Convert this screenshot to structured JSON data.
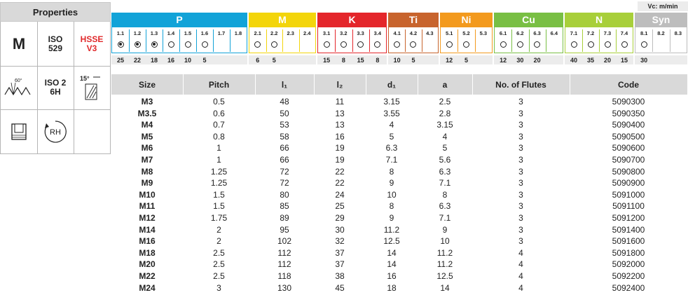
{
  "properties": {
    "title": "Properties",
    "tap_type": "M",
    "standard": [
      "ISO",
      "529"
    ],
    "material": [
      "HSSE",
      "V3"
    ],
    "tolerance": [
      "ISO 2",
      "6H"
    ],
    "thread_angle": "60°",
    "helix_angle": "15°",
    "direction": "RH"
  },
  "vc_label": "Vc: m/min",
  "groups": [
    {
      "name": "P",
      "color": "#12a3d8",
      "subs": [
        {
          "code": "1.1",
          "sym": "filled",
          "vc": "25"
        },
        {
          "code": "1.2",
          "sym": "filled",
          "vc": "22"
        },
        {
          "code": "1.3",
          "sym": "filled",
          "vc": "18"
        },
        {
          "code": "1.4",
          "sym": "open",
          "vc": "16"
        },
        {
          "code": "1.5",
          "sym": "open",
          "vc": "10"
        },
        {
          "code": "1.6",
          "sym": "open",
          "vc": "5"
        },
        {
          "code": "1.7",
          "sym": "",
          "vc": ""
        },
        {
          "code": "1.8",
          "sym": "",
          "vc": ""
        }
      ]
    },
    {
      "name": "M",
      "color": "#f3d50b",
      "subs": [
        {
          "code": "2.1",
          "sym": "open",
          "vc": "6"
        },
        {
          "code": "2.2",
          "sym": "open",
          "vc": "5"
        },
        {
          "code": "2.3",
          "sym": "",
          "vc": ""
        },
        {
          "code": "2.4",
          "sym": "",
          "vc": ""
        }
      ]
    },
    {
      "name": "K",
      "color": "#e4262b",
      "subs": [
        {
          "code": "3.1",
          "sym": "open",
          "vc": "15"
        },
        {
          "code": "3.2",
          "sym": "open",
          "vc": "8"
        },
        {
          "code": "3.3",
          "sym": "open",
          "vc": "15"
        },
        {
          "code": "3.4",
          "sym": "open",
          "vc": "8"
        }
      ]
    },
    {
      "name": "Ti",
      "color": "#c8642d",
      "subs": [
        {
          "code": "4.1",
          "sym": "open",
          "vc": "10"
        },
        {
          "code": "4.2",
          "sym": "open",
          "vc": "5"
        },
        {
          "code": "4.3",
          "sym": "",
          "vc": ""
        }
      ]
    },
    {
      "name": "Ni",
      "color": "#f39a1e",
      "subs": [
        {
          "code": "5.1",
          "sym": "open",
          "vc": "12"
        },
        {
          "code": "5.2",
          "sym": "open",
          "vc": "5"
        },
        {
          "code": "5.3",
          "sym": "",
          "vc": ""
        }
      ]
    },
    {
      "name": "Cu",
      "color": "#79bf44",
      "subs": [
        {
          "code": "6.1",
          "sym": "open",
          "vc": "12"
        },
        {
          "code": "6.2",
          "sym": "open",
          "vc": "30"
        },
        {
          "code": "6.3",
          "sym": "open",
          "vc": "20"
        },
        {
          "code": "6.4",
          "sym": "",
          "vc": ""
        }
      ]
    },
    {
      "name": "N",
      "color": "#a8cf3a",
      "subs": [
        {
          "code": "7.1",
          "sym": "open",
          "vc": "40"
        },
        {
          "code": "7.2",
          "sym": "open",
          "vc": "35"
        },
        {
          "code": "7.3",
          "sym": "open",
          "vc": "20"
        },
        {
          "code": "7.4",
          "sym": "open",
          "vc": "15"
        }
      ]
    },
    {
      "name": "Syn",
      "color": "#bdbdbd",
      "subs": [
        {
          "code": "8.1",
          "sym": "open",
          "vc": "30"
        },
        {
          "code": "8.2",
          "sym": "",
          "vc": ""
        },
        {
          "code": "8.3",
          "sym": "",
          "vc": ""
        }
      ]
    }
  ],
  "table": {
    "headers": [
      "Size",
      "Pitch",
      "l₁",
      "l₂",
      "d₁",
      "a",
      "No. of Flutes",
      "Code"
    ],
    "rows": [
      [
        "M3",
        "0.5",
        "48",
        "11",
        "3.15",
        "2.5",
        "3",
        "5090300"
      ],
      [
        "M3.5",
        "0.6",
        "50",
        "13",
        "3.55",
        "2.8",
        "3",
        "5090350"
      ],
      [
        "M4",
        "0.7",
        "53",
        "13",
        "4",
        "3.15",
        "3",
        "5090400"
      ],
      [
        "M5",
        "0.8",
        "58",
        "16",
        "5",
        "4",
        "3",
        "5090500"
      ],
      [
        "M6",
        "1",
        "66",
        "19",
        "6.3",
        "5",
        "3",
        "5090600"
      ],
      [
        "M7",
        "1",
        "66",
        "19",
        "7.1",
        "5.6",
        "3",
        "5090700"
      ],
      [
        "M8",
        "1.25",
        "72",
        "22",
        "8",
        "6.3",
        "3",
        "5090800"
      ],
      [
        "M9",
        "1.25",
        "72",
        "22",
        "9",
        "7.1",
        "3",
        "5090900"
      ],
      [
        "M10",
        "1.5",
        "80",
        "24",
        "10",
        "8",
        "3",
        "5091000"
      ],
      [
        "M11",
        "1.5",
        "85",
        "25",
        "8",
        "6.3",
        "3",
        "5091100"
      ],
      [
        "M12",
        "1.75",
        "89",
        "29",
        "9",
        "7.1",
        "3",
        "5091200"
      ],
      [
        "M14",
        "2",
        "95",
        "30",
        "11.2",
        "9",
        "3",
        "5091400"
      ],
      [
        "M16",
        "2",
        "102",
        "32",
        "12.5",
        "10",
        "3",
        "5091600"
      ],
      [
        "M18",
        "2.5",
        "112",
        "37",
        "14",
        "11.2",
        "4",
        "5091800"
      ],
      [
        "M20",
        "2.5",
        "112",
        "37",
        "14",
        "11.2",
        "4",
        "5092000"
      ],
      [
        "M22",
        "2.5",
        "118",
        "38",
        "16",
        "12.5",
        "4",
        "5092200"
      ],
      [
        "M24",
        "3",
        "130",
        "45",
        "18",
        "14",
        "4",
        "5092400"
      ]
    ]
  }
}
